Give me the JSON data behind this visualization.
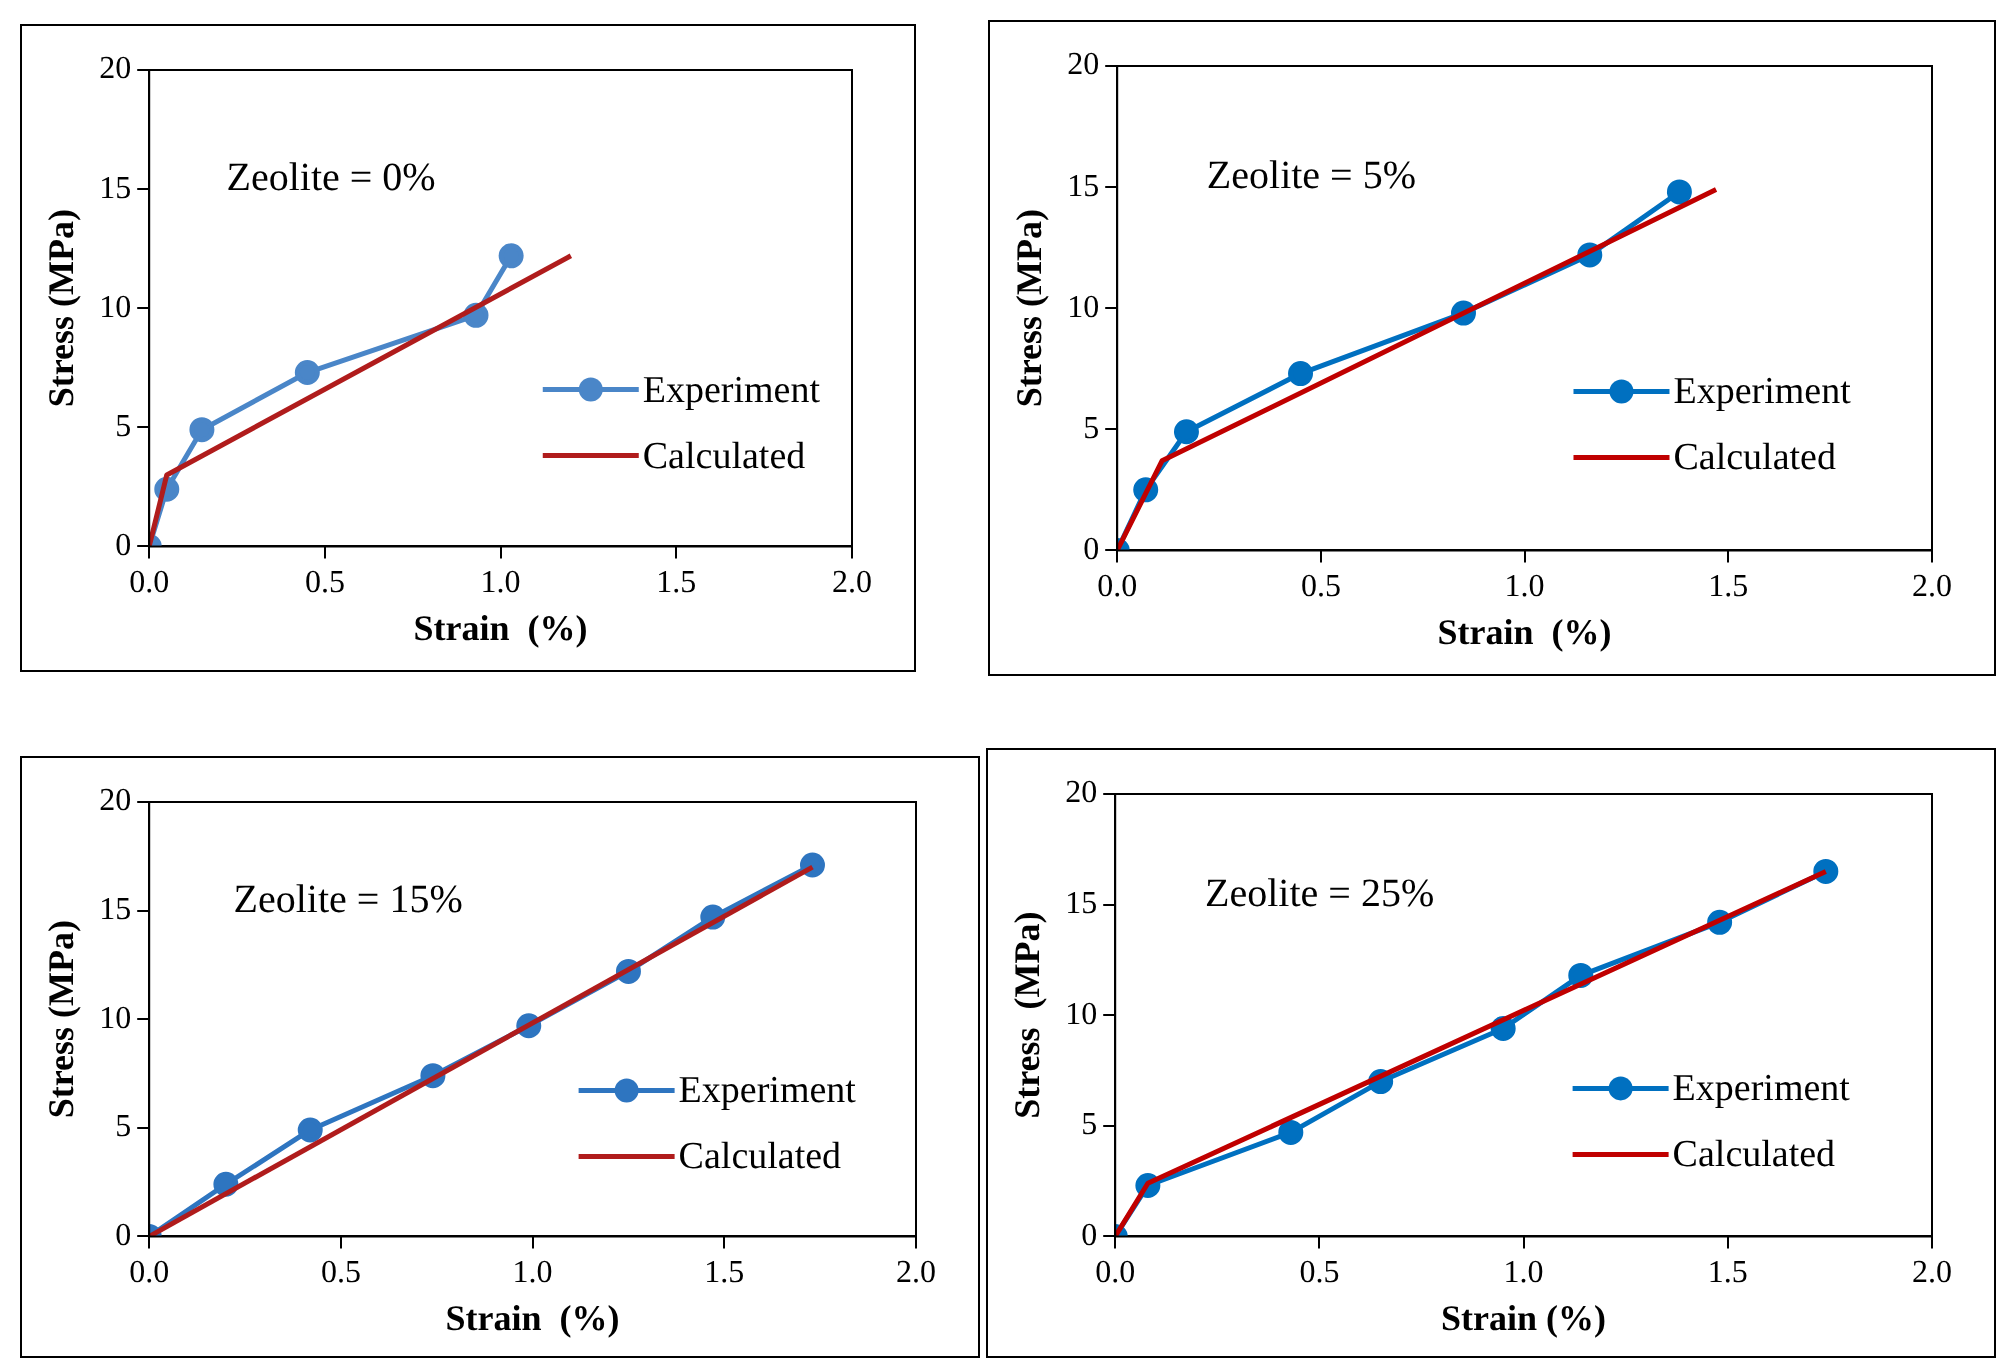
{
  "chart_data": [
    {
      "type": "line",
      "xlabel": "Strain  (%)",
      "ylabel": "Stress (MPa)",
      "annotations": [
        "Zeolite = 0%"
      ],
      "xlim": [
        0,
        2
      ],
      "xticks": [
        {
          "value": 0,
          "label": "0.0"
        },
        {
          "value": 0.5,
          "label": "0.5"
        },
        {
          "value": 1,
          "label": "1.0"
        },
        {
          "value": 1.5,
          "label": "1.5"
        },
        {
          "value": 2,
          "label": "2.0"
        }
      ],
      "ylim": [
        0,
        20
      ],
      "yticks": [
        0,
        5,
        10,
        15,
        20
      ],
      "grid": false,
      "legend": "right",
      "series": [
        {
          "name": "Experiment",
          "color": "#4a86c8",
          "marker": "circle",
          "x": [
            0,
            0.05,
            0.15,
            0.45,
            0.93,
            1.03
          ],
          "values": [
            0,
            2.4,
            4.9,
            7.3,
            9.7,
            12.2
          ]
        },
        {
          "name": "Calculated",
          "color": "#b01c1c",
          "marker": "none",
          "x": [
            0,
            0.05,
            1.2
          ],
          "values": [
            0,
            3.0,
            12.2
          ]
        }
      ]
    },
    {
      "type": "line",
      "xlabel": "Strain  (%)",
      "ylabel": "Stress (MPa)",
      "annotations": [
        "Zeolite = 5%"
      ],
      "xlim": [
        0,
        2
      ],
      "xticks": [
        {
          "value": 0,
          "label": "0.0"
        },
        {
          "value": 0.5,
          "label": "0.5"
        },
        {
          "value": 1,
          "label": "1.0"
        },
        {
          "value": 1.5,
          "label": "1.5"
        },
        {
          "value": 2,
          "label": "2.0"
        }
      ],
      "ylim": [
        0,
        20
      ],
      "yticks": [
        0,
        5,
        10,
        15,
        20
      ],
      "grid": false,
      "legend": "right",
      "series": [
        {
          "name": "Experiment",
          "color": "#0070c0",
          "marker": "circle",
          "x": [
            0,
            0.07,
            0.17,
            0.45,
            0.85,
            1.16,
            1.38
          ],
          "values": [
            0,
            2.5,
            4.9,
            7.3,
            9.8,
            12.2,
            14.8
          ]
        },
        {
          "name": "Calculated",
          "color": "#c00000",
          "marker": "none",
          "x": [
            0,
            0.11,
            1.47
          ],
          "values": [
            0,
            3.7,
            14.9
          ]
        }
      ]
    },
    {
      "type": "line",
      "xlabel": "Strain  (%)",
      "ylabel": "Stress (MPa)",
      "annotations": [
        "Zeolite = 15%"
      ],
      "xlim": [
        0,
        2
      ],
      "xticks": [
        {
          "value": 0,
          "label": "0.0"
        },
        {
          "value": 0.5,
          "label": "0.5"
        },
        {
          "value": 1,
          "label": "1.0"
        },
        {
          "value": 1.5,
          "label": "1.5"
        },
        {
          "value": 2,
          "label": "2.0"
        }
      ],
      "ylim": [
        0,
        20
      ],
      "yticks": [
        0,
        5,
        10,
        15,
        20
      ],
      "grid": false,
      "legend": "right",
      "series": [
        {
          "name": "Experiment",
          "color": "#2e75c0",
          "marker": "circle",
          "x": [
            0,
            0.2,
            0.42,
            0.74,
            0.99,
            1.25,
            1.47,
            1.73
          ],
          "values": [
            0,
            2.4,
            4.9,
            7.4,
            9.7,
            12.2,
            14.7,
            17.1
          ]
        },
        {
          "name": "Calculated",
          "color": "#b01c1c",
          "marker": "none",
          "x": [
            0,
            1.73
          ],
          "values": [
            0,
            17.0
          ]
        }
      ]
    },
    {
      "type": "line",
      "xlabel": "Strain (%)",
      "ylabel": "Stress  (MPa)",
      "annotations": [
        "Zeolite = 25%"
      ],
      "xlim": [
        0,
        2
      ],
      "xticks": [
        {
          "value": 0,
          "label": "0.0"
        },
        {
          "value": 0.5,
          "label": "0.5"
        },
        {
          "value": 1,
          "label": "1.0"
        },
        {
          "value": 1.5,
          "label": "1.5"
        },
        {
          "value": 2,
          "label": "2.0"
        }
      ],
      "ylim": [
        0,
        20
      ],
      "yticks": [
        0,
        5,
        10,
        15,
        20
      ],
      "grid": false,
      "legend": "right",
      "series": [
        {
          "name": "Experiment",
          "color": "#0070c0",
          "marker": "circle",
          "x": [
            0,
            0.08,
            0.43,
            0.65,
            0.95,
            1.14,
            1.48,
            1.74
          ],
          "values": [
            0,
            2.3,
            4.7,
            7.0,
            9.4,
            11.8,
            14.2,
            16.5
          ]
        },
        {
          "name": "Calculated",
          "color": "#c00000",
          "marker": "none",
          "x": [
            0,
            0.08,
            1.74
          ],
          "values": [
            0,
            2.4,
            16.5
          ]
        }
      ]
    }
  ]
}
